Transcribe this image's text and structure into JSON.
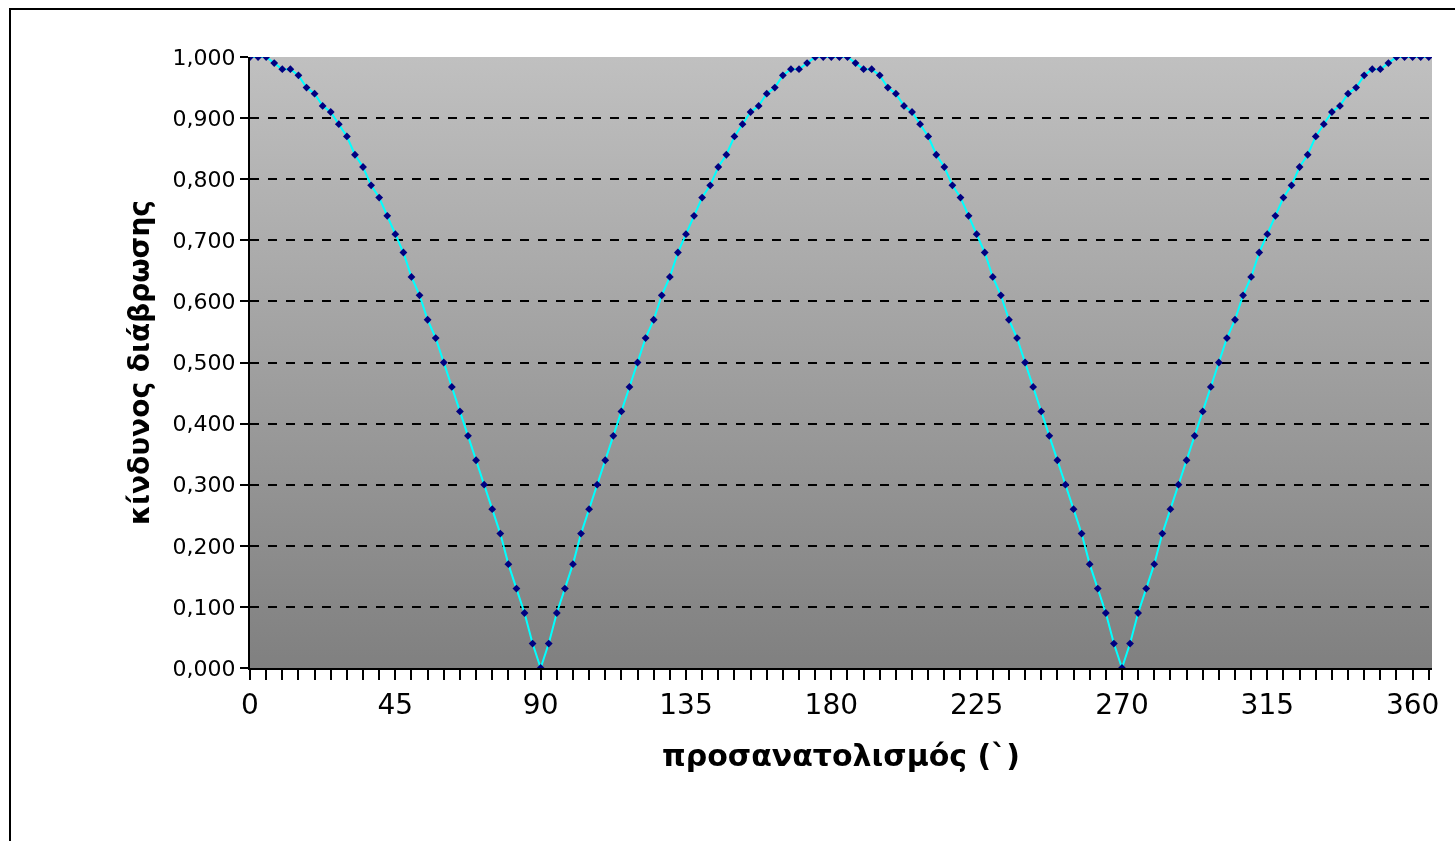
{
  "chart_data": {
    "type": "line",
    "xlabel": "προσανατολισμός (`)",
    "ylabel": "κίνδυνος διάβρωσης",
    "x": [
      0,
      2.5,
      5,
      7.5,
      10,
      12.5,
      15,
      17.5,
      20,
      22.5,
      25,
      27.5,
      30,
      32.5,
      35,
      37.5,
      40,
      42.5,
      45,
      47.5,
      50,
      52.5,
      55,
      57.5,
      60,
      62.5,
      65,
      67.5,
      70,
      72.5,
      75,
      77.5,
      80,
      82.5,
      85,
      87.5,
      90,
      92.5,
      95,
      97.5,
      100,
      102.5,
      105,
      107.5,
      110,
      112.5,
      115,
      117.5,
      120,
      122.5,
      125,
      127.5,
      130,
      132.5,
      135,
      137.5,
      140,
      142.5,
      145,
      147.5,
      150,
      152.5,
      155,
      157.5,
      160,
      162.5,
      165,
      167.5,
      170,
      172.5,
      175,
      177.5,
      180,
      182.5,
      185,
      187.5,
      190,
      192.5,
      195,
      197.5,
      200,
      202.5,
      205,
      207.5,
      210,
      212.5,
      215,
      217.5,
      220,
      222.5,
      225,
      227.5,
      230,
      232.5,
      235,
      237.5,
      240,
      242.5,
      245,
      247.5,
      250,
      252.5,
      255,
      257.5,
      260,
      262.5,
      265,
      267.5,
      270,
      272.5,
      275,
      277.5,
      280,
      282.5,
      285,
      287.5,
      290,
      292.5,
      295,
      297.5,
      300,
      302.5,
      305,
      307.5,
      310,
      312.5,
      315,
      317.5,
      320,
      322.5,
      325,
      327.5,
      330,
      332.5,
      335,
      337.5,
      340,
      342.5,
      345,
      347.5,
      350,
      352.5,
      355,
      357.5,
      360,
      362.5,
      365
    ],
    "series": [
      {
        "color": "#000080",
        "values": [
          1.0,
          1.0,
          1.0,
          0.99,
          0.98,
          0.98,
          0.97,
          0.95,
          0.94,
          0.92,
          0.91,
          0.89,
          0.87,
          0.84,
          0.82,
          0.79,
          0.77,
          0.74,
          0.71,
          0.68,
          0.64,
          0.61,
          0.57,
          0.54,
          0.5,
          0.46,
          0.42,
          0.38,
          0.34,
          0.3,
          0.26,
          0.22,
          0.17,
          0.13,
          0.09,
          0.04,
          0.0,
          0.04,
          0.09,
          0.13,
          0.17,
          0.22,
          0.26,
          0.3,
          0.34,
          0.38,
          0.42,
          0.46,
          0.5,
          0.54,
          0.57,
          0.61,
          0.64,
          0.68,
          0.71,
          0.74,
          0.77,
          0.79,
          0.82,
          0.84,
          0.87,
          0.89,
          0.91,
          0.92,
          0.94,
          0.95,
          0.97,
          0.98,
          0.98,
          0.99,
          1.0,
          1.0,
          1.0,
          1.0,
          1.0,
          0.99,
          0.98,
          0.98,
          0.97,
          0.95,
          0.94,
          0.92,
          0.91,
          0.89,
          0.87,
          0.84,
          0.82,
          0.79,
          0.77,
          0.74,
          0.71,
          0.68,
          0.64,
          0.61,
          0.57,
          0.54,
          0.5,
          0.46,
          0.42,
          0.38,
          0.34,
          0.3,
          0.26,
          0.22,
          0.17,
          0.13,
          0.09,
          0.04,
          0.0,
          0.04,
          0.09,
          0.13,
          0.17,
          0.22,
          0.26,
          0.3,
          0.34,
          0.38,
          0.42,
          0.46,
          0.5,
          0.54,
          0.57,
          0.61,
          0.64,
          0.68,
          0.71,
          0.74,
          0.77,
          0.79,
          0.82,
          0.84,
          0.87,
          0.89,
          0.91,
          0.92,
          0.94,
          0.95,
          0.97,
          0.98,
          0.98,
          0.99,
          1.0,
          1.0,
          1.0,
          1.0,
          1.0
        ]
      }
    ],
    "xlim": [
      0,
      366
    ],
    "xticks": [
      0,
      {
        "value": 5,
        "label": null
      },
      {
        "value": 10,
        "label": null
      },
      {
        "value": 15,
        "label": null
      },
      {
        "value": 20,
        "label": null
      },
      {
        "value": 25,
        "label": null
      },
      {
        "value": 30,
        "label": null
      },
      {
        "value": 35,
        "label": null
      },
      {
        "value": 40,
        "label": null
      },
      45,
      {
        "value": 50,
        "label": null
      },
      {
        "value": 55,
        "label": null
      },
      {
        "value": 60,
        "label": null
      },
      {
        "value": 65,
        "label": null
      },
      {
        "value": 70,
        "label": null
      },
      {
        "value": 75,
        "label": null
      },
      {
        "value": 80,
        "label": null
      },
      {
        "value": 85,
        "label": null
      },
      90,
      {
        "value": 95,
        "label": null
      },
      {
        "value": 100,
        "label": null
      },
      {
        "value": 105,
        "label": null
      },
      {
        "value": 110,
        "label": null
      },
      {
        "value": 115,
        "label": null
      },
      {
        "value": 120,
        "label": null
      },
      {
        "value": 125,
        "label": null
      },
      {
        "value": 130,
        "label": null
      },
      135,
      {
        "value": 140,
        "label": null
      },
      {
        "value": 145,
        "label": null
      },
      {
        "value": 150,
        "label": null
      },
      {
        "value": 155,
        "label": null
      },
      {
        "value": 160,
        "label": null
      },
      {
        "value": 165,
        "label": null
      },
      {
        "value": 170,
        "label": null
      },
      {
        "value": 175,
        "label": null
      },
      180,
      {
        "value": 185,
        "label": null
      },
      {
        "value": 190,
        "label": null
      },
      {
        "value": 195,
        "label": null
      },
      {
        "value": 200,
        "label": null
      },
      {
        "value": 205,
        "label": null
      },
      {
        "value": 210,
        "label": null
      },
      {
        "value": 215,
        "label": null
      },
      {
        "value": 220,
        "label": null
      },
      225,
      {
        "value": 230,
        "label": null
      },
      {
        "value": 235,
        "label": null
      },
      {
        "value": 240,
        "label": null
      },
      {
        "value": 245,
        "label": null
      },
      {
        "value": 250,
        "label": null
      },
      {
        "value": 255,
        "label": null
      },
      {
        "value": 260,
        "label": null
      },
      {
        "value": 265,
        "label": null
      },
      270,
      {
        "value": 275,
        "label": null
      },
      {
        "value": 280,
        "label": null
      },
      {
        "value": 285,
        "label": null
      },
      {
        "value": 290,
        "label": null
      },
      {
        "value": 295,
        "label": null
      },
      {
        "value": 300,
        "label": null
      },
      {
        "value": 305,
        "label": null
      },
      {
        "value": 310,
        "label": null
      },
      315,
      {
        "value": 320,
        "label": null
      },
      {
        "value": 325,
        "label": null
      },
      {
        "value": 330,
        "label": null
      },
      {
        "value": 335,
        "label": null
      },
      {
        "value": 340,
        "label": null
      },
      {
        "value": 345,
        "label": null
      },
      {
        "value": 350,
        "label": null
      },
      {
        "value": 355,
        "label": null
      },
      360,
      {
        "value": 365,
        "label": null
      }
    ],
    "ylim": [
      0,
      1
    ],
    "yticks": [
      {
        "value": 0,
        "label": "0,000"
      },
      {
        "value": 0.1,
        "label": "0,100"
      },
      {
        "value": 0.2,
        "label": "0,200"
      },
      {
        "value": 0.3,
        "label": "0,300"
      },
      {
        "value": 0.4,
        "label": "0,400"
      },
      {
        "value": 0.5,
        "label": "0,500"
      },
      {
        "value": 0.6,
        "label": "0,600"
      },
      {
        "value": 0.7,
        "label": "0,700"
      },
      {
        "value": 0.8,
        "label": "0,800"
      },
      {
        "value": 0.9,
        "label": "0,900"
      },
      {
        "value": 1,
        "label": "1,000"
      }
    ],
    "grid": "y",
    "marker": "diamond",
    "line_style": "solid"
  }
}
